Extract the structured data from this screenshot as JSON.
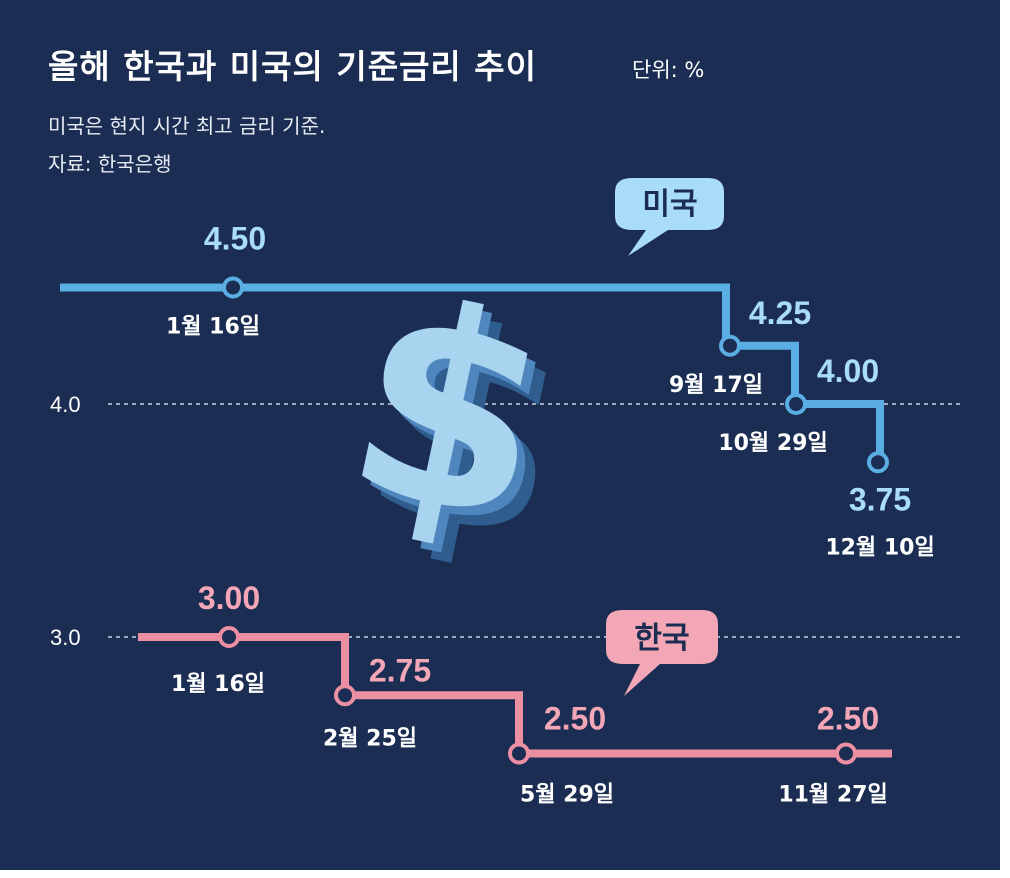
{
  "header": {
    "title": "올해 한국과 미국의 기준금리 추이",
    "unit": "단위: %",
    "subtitle": "미국은 현지 시간 최고 금리 기준.",
    "source": "자료: 한국은행"
  },
  "colors": {
    "background": "#1b2d52",
    "us_line": "#5aaee3",
    "us_label": "#a9dcf6",
    "kr_line": "#ec8fa3",
    "kr_label": "#f3a7b6",
    "marker_fill": "#1b2d52",
    "gridline": "#c9d3e6"
  },
  "icon": "dollar-sign-icon",
  "chart_data": {
    "type": "line",
    "step": true,
    "title": "올해 한국과 미국의 기준금리 추이",
    "ylabel": "",
    "yticks": [
      3.0,
      4.0
    ],
    "ytick_labels": [
      "3.0",
      "4.0"
    ],
    "grid": "dashed at y ticks",
    "series": [
      {
        "name": "미국",
        "dates": [
          "1월 16일",
          "9월 17일",
          "10월 29일",
          "12월 10일"
        ],
        "values": [
          4.5,
          4.25,
          4.0,
          3.75
        ],
        "value_labels": [
          "4.50",
          "4.25",
          "4.00",
          "3.75"
        ]
      },
      {
        "name": "한국",
        "dates": [
          "1월 16일",
          "2월 25일",
          "5월 29일",
          "11월 27일"
        ],
        "values": [
          3.0,
          2.75,
          2.5,
          2.5
        ],
        "value_labels": [
          "3.00",
          "2.75",
          "2.50",
          "2.50"
        ]
      }
    ]
  }
}
